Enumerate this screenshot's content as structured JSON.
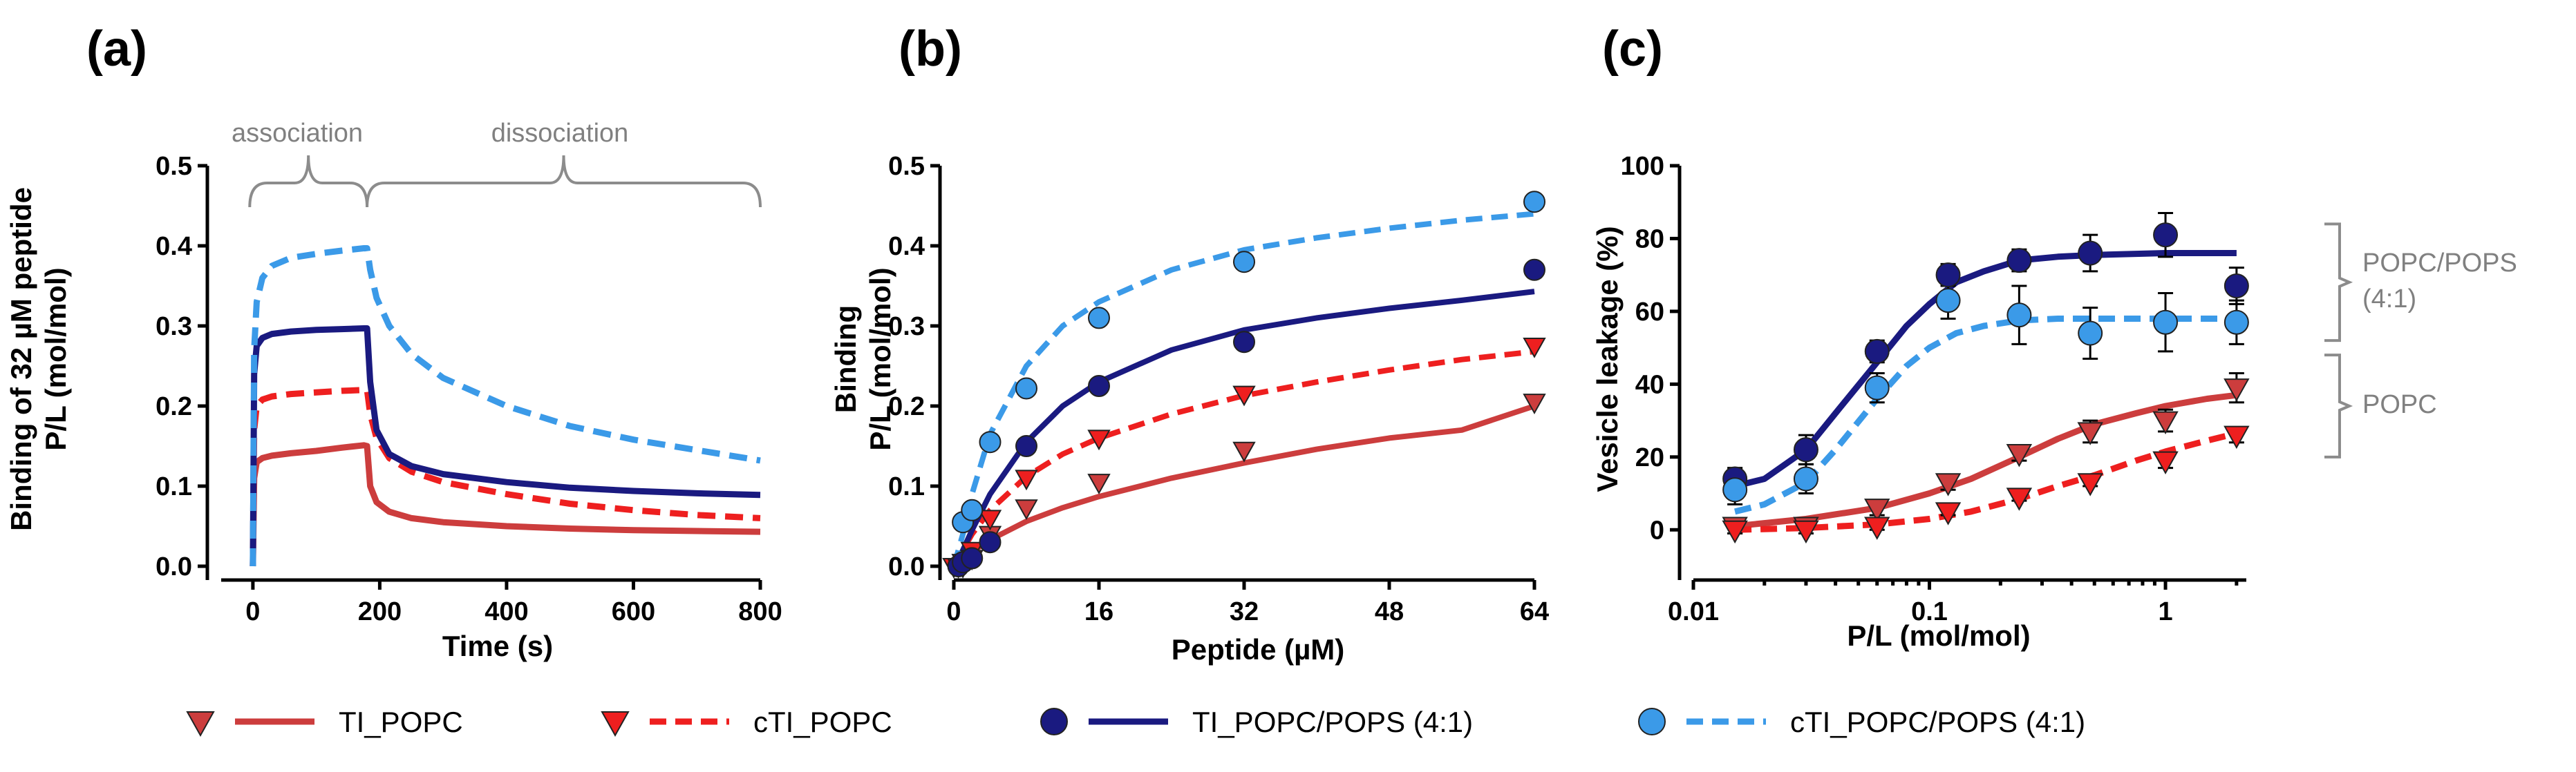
{
  "colors": {
    "ti_popc": "#cc3d3d",
    "cti_popc": "#ee1f1f",
    "ti_popc_pops": "#1a1a80",
    "cti_popc_pops": "#3b9ae8",
    "annotation": "#808080"
  },
  "chart_data": [
    {
      "id": "a",
      "type": "line",
      "panel_label": "(a)",
      "xlabel": "Time (s)",
      "ylabel_line1": "Binding of 32 µM peptide",
      "ylabel_line2": "P/L (mol/mol)",
      "xlim": [
        -50,
        800
      ],
      "ylim": [
        0,
        0.5
      ],
      "xticks": [
        "0",
        "200",
        "400",
        "600",
        "800"
      ],
      "xtick_values": [
        0,
        200,
        400,
        600,
        800
      ],
      "yticks": [
        "0.0",
        "0.1",
        "0.2",
        "0.3",
        "0.4",
        "0.5"
      ],
      "ytick_values": [
        0,
        0.1,
        0.2,
        0.3,
        0.4,
        0.5
      ],
      "annotations": {
        "association": "association",
        "dissociation": "dissociation"
      },
      "association_range": [
        -5,
        180
      ],
      "dissociation_range": [
        180,
        800
      ],
      "series": [
        {
          "name": "TI_POPC",
          "style": "solid",
          "x": [
            0,
            2,
            6,
            15,
            30,
            60,
            100,
            140,
            175,
            180,
            185,
            195,
            215,
            250,
            300,
            400,
            500,
            600,
            700,
            800
          ],
          "y": [
            0.0,
            0.11,
            0.13,
            0.135,
            0.138,
            0.141,
            0.144,
            0.148,
            0.151,
            0.15,
            0.1,
            0.08,
            0.068,
            0.06,
            0.055,
            0.05,
            0.047,
            0.045,
            0.044,
            0.043
          ]
        },
        {
          "name": "cTI_POPC",
          "style": "dashed",
          "x": [
            0,
            2,
            6,
            15,
            30,
            60,
            100,
            140,
            175,
            180,
            185,
            195,
            215,
            250,
            300,
            400,
            500,
            600,
            700,
            800
          ],
          "y": [
            0.0,
            0.17,
            0.2,
            0.208,
            0.212,
            0.215,
            0.217,
            0.219,
            0.22,
            0.22,
            0.19,
            0.16,
            0.135,
            0.118,
            0.105,
            0.09,
            0.078,
            0.07,
            0.064,
            0.06
          ]
        },
        {
          "name": "TI_POPC/POPS (4:1)",
          "style": "solid",
          "x": [
            0,
            2,
            6,
            15,
            30,
            60,
            100,
            140,
            175,
            180,
            185,
            195,
            215,
            250,
            300,
            400,
            500,
            600,
            700,
            800
          ],
          "y": [
            0.0,
            0.24,
            0.275,
            0.285,
            0.29,
            0.293,
            0.295,
            0.296,
            0.297,
            0.297,
            0.23,
            0.17,
            0.14,
            0.125,
            0.115,
            0.105,
            0.098,
            0.094,
            0.091,
            0.089
          ]
        },
        {
          "name": "cTI_POPC/POPS (4:1)",
          "style": "dashed",
          "x": [
            0,
            2,
            6,
            15,
            30,
            60,
            100,
            140,
            175,
            180,
            185,
            195,
            215,
            250,
            300,
            400,
            500,
            600,
            700,
            800
          ],
          "y": [
            0.0,
            0.27,
            0.33,
            0.36,
            0.375,
            0.385,
            0.39,
            0.394,
            0.397,
            0.397,
            0.37,
            0.335,
            0.3,
            0.265,
            0.235,
            0.2,
            0.175,
            0.158,
            0.145,
            0.132
          ]
        }
      ]
    },
    {
      "id": "b",
      "type": "scatter",
      "panel_label": "(b)",
      "xlabel": "Peptide (µM)",
      "ylabel_line1": "Binding",
      "ylabel_line2": "P/L (mol/mol)",
      "xlim": [
        0,
        64
      ],
      "ylim": [
        0,
        0.5
      ],
      "xticks": [
        "0",
        "16",
        "32",
        "48",
        "64"
      ],
      "xtick_values": [
        0,
        16,
        32,
        48,
        64
      ],
      "yticks": [
        "0.0",
        "0.1",
        "0.2",
        "0.3",
        "0.4",
        "0.5"
      ],
      "ytick_values": [
        0,
        0.1,
        0.2,
        0.3,
        0.4,
        0.5
      ],
      "series": [
        {
          "name": "TI_POPC",
          "marker": "triangle",
          "style": "solid",
          "x": [
            0,
            0.5,
            1,
            2,
            4,
            8,
            16,
            32,
            64
          ],
          "y": [
            0.0,
            0.0,
            0.0,
            0.01,
            0.04,
            0.073,
            0.105,
            0.145,
            0.205
          ],
          "fit_x": [
            0,
            1,
            2,
            4,
            8,
            12,
            16,
            24,
            32,
            40,
            48,
            56,
            64
          ],
          "fit_y": [
            0,
            0.01,
            0.018,
            0.033,
            0.056,
            0.073,
            0.087,
            0.11,
            0.129,
            0.146,
            0.16,
            0.17,
            0.2
          ]
        },
        {
          "name": "cTI_POPC",
          "marker": "triangle",
          "style": "dashed",
          "x": [
            0,
            0.5,
            1,
            2,
            4,
            8,
            16,
            32,
            64
          ],
          "y": [
            0.0,
            0.0,
            0.005,
            0.02,
            0.06,
            0.11,
            0.16,
            0.215,
            0.275
          ],
          "fit_x": [
            0,
            1,
            2,
            4,
            8,
            12,
            16,
            24,
            32,
            40,
            48,
            56,
            64
          ],
          "fit_y": [
            0,
            0.02,
            0.04,
            0.07,
            0.112,
            0.14,
            0.16,
            0.19,
            0.213,
            0.23,
            0.245,
            0.258,
            0.268
          ]
        },
        {
          "name": "TI_POPC/POPS (4:1)",
          "marker": "circle",
          "style": "solid",
          "x": [
            0.5,
            1,
            2,
            4,
            8,
            16,
            32,
            64
          ],
          "y": [
            0.0,
            0.005,
            0.01,
            0.03,
            0.15,
            0.225,
            0.28,
            0.37
          ],
          "fit_x": [
            0,
            1,
            2,
            4,
            8,
            12,
            16,
            24,
            32,
            40,
            48,
            56,
            64
          ],
          "fit_y": [
            0,
            0.02,
            0.045,
            0.09,
            0.155,
            0.2,
            0.23,
            0.27,
            0.295,
            0.31,
            0.322,
            0.332,
            0.343
          ]
        },
        {
          "name": "cTI_POPC/POPS (4:1)",
          "marker": "circle",
          "style": "dashed",
          "x": [
            1,
            2,
            4,
            8,
            16,
            32,
            64
          ],
          "y": [
            0.055,
            0.07,
            0.155,
            0.222,
            0.31,
            0.38,
            0.455
          ],
          "fit_x": [
            0,
            1,
            2,
            4,
            8,
            12,
            16,
            24,
            32,
            40,
            48,
            56,
            64
          ],
          "fit_y": [
            0,
            0.04,
            0.09,
            0.165,
            0.25,
            0.3,
            0.33,
            0.37,
            0.395,
            0.41,
            0.422,
            0.432,
            0.44
          ]
        }
      ]
    },
    {
      "id": "c",
      "type": "scatter",
      "panel_label": "(c)",
      "xlabel": "P/L (mol/mol)",
      "ylabel": "Vesicle leakage (%)",
      "xscale": "log",
      "xlim": [
        0.01,
        2.2
      ],
      "ylim": [
        -10,
        100
      ],
      "xticks": [
        "0.01",
        "0.1",
        "1"
      ],
      "xtick_values": [
        0.01,
        0.1,
        1
      ],
      "yticks": [
        "0",
        "20",
        "40",
        "60",
        "80",
        "100"
      ],
      "ytick_values": [
        0,
        20,
        40,
        60,
        80,
        100
      ],
      "bracket_labels": {
        "pops_line1": "POPC/POPS",
        "pops_line2": "(4:1)",
        "popc": "POPC"
      },
      "series": [
        {
          "name": "TI_POPC",
          "marker": "triangle",
          "style": "solid",
          "x": [
            0.015,
            0.03,
            0.06,
            0.12,
            0.24,
            0.48,
            1,
            2
          ],
          "y": [
            1,
            1,
            6,
            13,
            21,
            27,
            30,
            39
          ],
          "err": [
            2,
            2,
            2,
            2,
            2,
            3,
            3,
            4
          ],
          "fit_x": [
            0.015,
            0.03,
            0.06,
            0.1,
            0.15,
            0.24,
            0.35,
            0.5,
            0.75,
            1,
            1.5,
            2
          ],
          "fit_y": [
            1,
            3,
            6,
            10,
            14,
            20,
            25,
            29,
            32,
            34,
            36,
            37
          ]
        },
        {
          "name": "cTI_POPC",
          "marker": "triangle",
          "style": "dashed",
          "x": [
            0.015,
            0.03,
            0.06,
            0.12,
            0.24,
            0.48,
            1,
            2
          ],
          "y": [
            0,
            0,
            1,
            5,
            9,
            13,
            19,
            26
          ],
          "err": [
            1,
            1,
            1,
            1,
            1,
            1,
            2,
            2
          ],
          "fit_x": [
            0.015,
            0.03,
            0.06,
            0.1,
            0.15,
            0.24,
            0.35,
            0.5,
            0.75,
            1,
            1.5,
            2
          ],
          "fit_y": [
            0,
            0.5,
            1.5,
            3,
            5,
            8.5,
            12,
            15,
            19,
            21.5,
            24.5,
            26.5
          ]
        },
        {
          "name": "TI_POPC/POPS (4:1)",
          "marker": "circle",
          "style": "solid",
          "x": [
            0.015,
            0.03,
            0.06,
            0.12,
            0.24,
            0.48,
            1,
            2
          ],
          "y": [
            14,
            22,
            49,
            70,
            74,
            76,
            81,
            67
          ],
          "err": [
            3,
            4,
            3,
            3,
            3,
            5,
            6,
            5
          ],
          "fit_x": [
            0.015,
            0.02,
            0.03,
            0.04,
            0.06,
            0.08,
            0.1,
            0.13,
            0.17,
            0.24,
            0.35,
            0.5,
            1,
            2
          ],
          "fit_y": [
            12,
            14,
            22,
            32,
            46,
            56,
            62,
            68,
            71,
            74,
            75,
            75.5,
            76,
            76
          ]
        },
        {
          "name": "cTI_POPC/POPS (4:1)",
          "marker": "circle",
          "style": "dashed",
          "x": [
            0.015,
            0.03,
            0.06,
            0.12,
            0.24,
            0.48,
            1,
            2
          ],
          "y": [
            11,
            14,
            39,
            63,
            59,
            54,
            57,
            57
          ],
          "err": [
            4,
            4,
            4,
            5,
            8,
            7,
            8,
            6
          ],
          "fit_x": [
            0.015,
            0.02,
            0.03,
            0.04,
            0.06,
            0.08,
            0.1,
            0.13,
            0.17,
            0.24,
            0.35,
            0.5,
            1,
            2
          ],
          "fit_y": [
            5,
            7,
            13,
            22,
            36,
            45,
            50,
            54,
            56,
            57.5,
            58,
            58,
            58,
            58
          ]
        }
      ]
    }
  ],
  "legend": [
    {
      "label": "TI_POPC",
      "marker": "triangle",
      "style": "solid",
      "color_key": "ti_popc"
    },
    {
      "label": "cTI_POPC",
      "marker": "triangle",
      "style": "dashed",
      "color_key": "cti_popc"
    },
    {
      "label": "TI_POPC/POPS (4:1)",
      "marker": "circle",
      "style": "solid",
      "color_key": "ti_popc_pops"
    },
    {
      "label": "cTI_POPC/POPS (4:1)",
      "marker": "circle",
      "style": "dashed",
      "color_key": "cti_popc_pops"
    }
  ]
}
